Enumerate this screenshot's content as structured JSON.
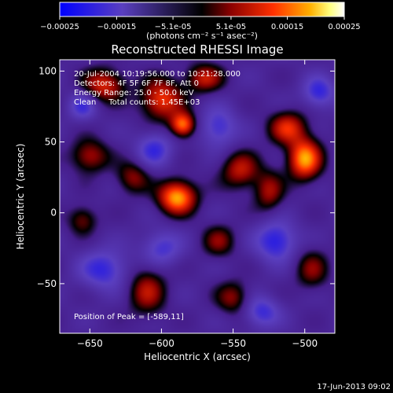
{
  "chart_data": {
    "type": "heatmap",
    "title": "Reconstructed RHESSI Image",
    "xlabel": "Heliocentric X (arcsec)",
    "ylabel": "Heliocentric Y (arcsec)",
    "xlim": [
      -671,
      -479
    ],
    "ylim": [
      -85,
      108
    ],
    "x_ticks": [
      -650,
      -600,
      -550,
      -500
    ],
    "y_ticks": [
      -50,
      0,
      50,
      100
    ],
    "colorbar": {
      "min": -0.00025,
      "max": 0.00025,
      "tick_values": [
        -0.00025,
        -0.00015,
        -5.1e-05,
        5.1e-05,
        0.00015,
        0.00025
      ],
      "tick_labels": [
        "-0.00025",
        "-0.00015",
        "-5.1e-05",
        "5.1e-05",
        "0.00015",
        "0.00025"
      ],
      "units_label": "(photons cm⁻² s⁻¹ asec⁻²)",
      "colors": [
        "#0000ff",
        "#5a3fc0",
        "#000000",
        "#8a0000",
        "#ff3000",
        "#ffb000",
        "#ffff80",
        "#ffffff"
      ]
    },
    "annotations": [
      "20-Jul-2004 10:19:56.000 to 10:21:28.000",
      "Detectors: 4F 5F 6F 7F 8F, Att 0",
      "Energy Range: 25.0 - 50.0 keV",
      "Clean     Total counts: 1.45E+03"
    ],
    "peak_label": "Position of Peak = [-589,11]",
    "peak": {
      "x": -589,
      "y": 11
    },
    "sources": [
      {
        "x": -589,
        "y": 11,
        "amp": 0.00025,
        "sx": 9,
        "sy": 8
      },
      {
        "x": -500,
        "y": 38,
        "amp": 0.00024,
        "sx": 8,
        "sy": 10
      },
      {
        "x": -512,
        "y": 60,
        "amp": 0.00016,
        "sx": 9,
        "sy": 8
      },
      {
        "x": -585,
        "y": 62,
        "amp": 0.00022,
        "sx": 6,
        "sy": 6
      },
      {
        "x": -600,
        "y": 80,
        "amp": 0.00018,
        "sx": 10,
        "sy": 10
      },
      {
        "x": -640,
        "y": 90,
        "amp": 0.00016,
        "sx": 10,
        "sy": 8
      },
      {
        "x": -545,
        "y": 30,
        "amp": 0.00014,
        "sx": 9,
        "sy": 9
      },
      {
        "x": -525,
        "y": 15,
        "amp": 0.00012,
        "sx": 7,
        "sy": 10
      },
      {
        "x": -650,
        "y": 40,
        "amp": 0.00013,
        "sx": 9,
        "sy": 8
      },
      {
        "x": -620,
        "y": 25,
        "amp": 0.00011,
        "sx": 8,
        "sy": 8
      },
      {
        "x": -560,
        "y": -20,
        "amp": 0.0001,
        "sx": 8,
        "sy": 8
      },
      {
        "x": -655,
        "y": -5,
        "amp": 0.0001,
        "sx": 7,
        "sy": 7
      },
      {
        "x": -610,
        "y": -55,
        "amp": 0.00013,
        "sx": 9,
        "sy": 12
      },
      {
        "x": -550,
        "y": -60,
        "amp": 0.00011,
        "sx": 8,
        "sy": 8
      },
      {
        "x": -495,
        "y": -40,
        "amp": 0.0001,
        "sx": 8,
        "sy": 10
      },
      {
        "x": -570,
        "y": 95,
        "amp": 0.00014,
        "sx": 9,
        "sy": 7
      },
      {
        "x": -605,
        "y": 45,
        "amp": -0.00012,
        "sx": 9,
        "sy": 9
      },
      {
        "x": -520,
        "y": -20,
        "amp": -0.00015,
        "sx": 10,
        "sy": 10
      },
      {
        "x": -640,
        "y": -40,
        "amp": -0.00013,
        "sx": 12,
        "sy": 10
      },
      {
        "x": -600,
        "y": -25,
        "amp": -0.00011,
        "sx": 10,
        "sy": 9
      },
      {
        "x": -560,
        "y": 60,
        "amp": -0.00012,
        "sx": 9,
        "sy": 10
      },
      {
        "x": -490,
        "y": 85,
        "amp": -0.00013,
        "sx": 8,
        "sy": 8
      },
      {
        "x": -655,
        "y": 75,
        "amp": -0.00011,
        "sx": 7,
        "sy": 7
      },
      {
        "x": -530,
        "y": -70,
        "amp": -0.00012,
        "sx": 9,
        "sy": 8
      }
    ]
  },
  "footer": {
    "date": "17-Jun-2013 09:02"
  }
}
